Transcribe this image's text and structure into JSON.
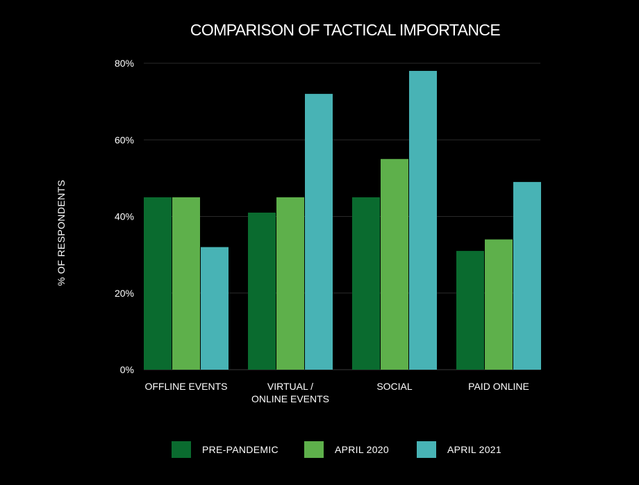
{
  "chart_data": {
    "type": "bar",
    "title": "COMPARISON OF TACTICAL IMPORTANCE",
    "xlabel": "",
    "ylabel": "% OF RESPONDENTS",
    "ylim": [
      0,
      80
    ],
    "yticks": [
      0,
      20,
      40,
      60,
      80
    ],
    "ytick_labels": [
      "0%",
      "20%",
      "40%",
      "60%",
      "80%"
    ],
    "categories": [
      [
        "OFFLINE EVENTS"
      ],
      [
        "VIRTUAL /",
        "ONLINE EVENTS"
      ],
      [
        "SOCIAL"
      ],
      [
        "PAID ONLINE"
      ]
    ],
    "series": [
      {
        "name": "PRE-PANDEMIC",
        "color": "#0a6b2f",
        "values": [
          45,
          41,
          45,
          31
        ]
      },
      {
        "name": "APRIL 2020",
        "color": "#5eb04b",
        "values": [
          45,
          45,
          55,
          34
        ]
      },
      {
        "name": "APRIL 2021",
        "color": "#48b3b5",
        "values": [
          32,
          72,
          78,
          49
        ]
      }
    ],
    "grid": true,
    "legend_position": "bottom"
  }
}
